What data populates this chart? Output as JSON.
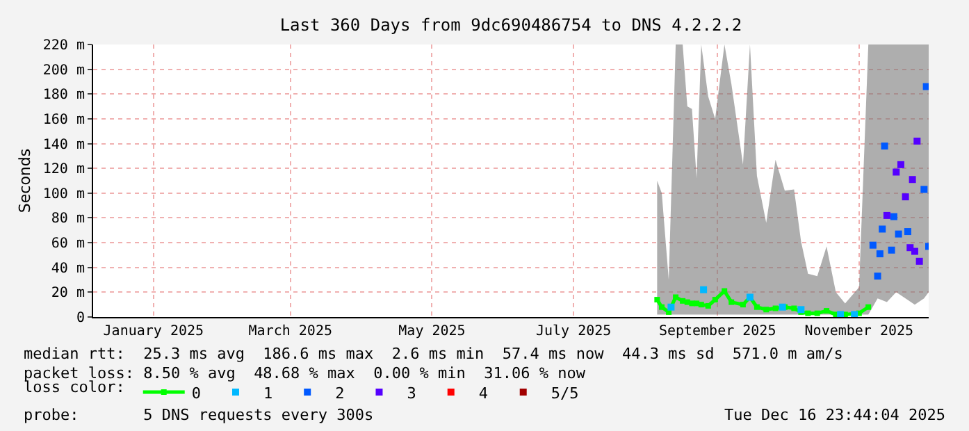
{
  "chart_data": {
    "type": "line",
    "title": "Last 360 Days from 9dc690486754 to DNS 4.2.2.2",
    "ylabel": "Seconds",
    "legend_title": "loss color:",
    "legend": "bottom",
    "marker": "square",
    "grid": true,
    "xlim": [
      "2024-12-21",
      "2025-12-16"
    ],
    "xticks": [
      {
        "value": "2025-01-16",
        "label": "January 2025"
      },
      {
        "value": "2025-03-16",
        "label": "March 2025"
      },
      {
        "value": "2025-05-16",
        "label": "May 2025"
      },
      {
        "value": "2025-07-16",
        "label": "July 2025"
      },
      {
        "value": "2025-09-16",
        "label": "September 2025"
      },
      {
        "value": "2025-11-16",
        "label": "November 2025"
      }
    ],
    "ylim": [
      0,
      220
    ],
    "yticks": [
      0,
      {
        "value": 20,
        "label": "20 m"
      },
      {
        "value": 40,
        "label": "40 m"
      },
      {
        "value": 60,
        "label": "60 m"
      },
      {
        "value": 80,
        "label": "80 m"
      },
      {
        "value": 100,
        "label": "100 m"
      },
      {
        "value": 120,
        "label": "120 m"
      },
      {
        "value": 140,
        "label": "140 m"
      },
      {
        "value": 160,
        "label": "160 m"
      },
      {
        "value": 180,
        "label": "180 m"
      },
      {
        "value": 200,
        "label": "200 m"
      },
      {
        "value": 220,
        "label": "220 m"
      }
    ],
    "series": [
      {
        "name": "0",
        "color": "#00ff00",
        "x": [
          "2025-08-21",
          "2025-08-23",
          "2025-08-26",
          "2025-08-29",
          "2025-09-01",
          "2025-09-03",
          "2025-09-05",
          "2025-09-07",
          "2025-09-09",
          "2025-09-12",
          "2025-09-15",
          "2025-09-19",
          "2025-09-22",
          "2025-09-27",
          "2025-09-30",
          "2025-10-03",
          "2025-10-07",
          "2025-10-11",
          "2025-10-15",
          "2025-10-19",
          "2025-10-22",
          "2025-10-25",
          "2025-10-29",
          "2025-11-02",
          "2025-11-06",
          "2025-11-10",
          "2025-11-16",
          "2025-11-20",
          "2025-11-24",
          "2025-11-28",
          "2025-12-02",
          "2025-12-06",
          "2025-12-10",
          "2025-12-14",
          "2025-12-16"
        ],
        "values": [
          14,
          8,
          4,
          16,
          13,
          12,
          11,
          11,
          10,
          9,
          14,
          21,
          12,
          10,
          16,
          8,
          6,
          7,
          8,
          7,
          4,
          3,
          3,
          5,
          2,
          2,
          3,
          8,
          null,
          null,
          null,
          null,
          null,
          null,
          null
        ],
        "lower": [
          2,
          2,
          2,
          2,
          2,
          2,
          2,
          2,
          2,
          2,
          2,
          2,
          2,
          2,
          2,
          2,
          2,
          2,
          2,
          2,
          2,
          2,
          2,
          2,
          2,
          2,
          2,
          2,
          15,
          12,
          20,
          15,
          10,
          15,
          20
        ],
        "upper": [
          110,
          100,
          30,
          220,
          220,
          170,
          168,
          112,
          220,
          178,
          160,
          220,
          188,
          123,
          220,
          114,
          76,
          127,
          102,
          103,
          61,
          35,
          33,
          57,
          20,
          11,
          24,
          220,
          220,
          220,
          220,
          220,
          220,
          220,
          220
        ]
      },
      {
        "name": "1",
        "color": "#00b8ff",
        "type": "scatter",
        "x": [
          "2025-08-27",
          "2025-09-10",
          "2025-09-30",
          "2025-10-14",
          "2025-10-22",
          "2025-11-08",
          "2025-11-14"
        ],
        "values": [
          8,
          22,
          16,
          8,
          6,
          2,
          2
        ]
      },
      {
        "name": "2",
        "color": "#0059ff",
        "type": "scatter",
        "x": [
          "2025-11-22",
          "2025-11-24",
          "2025-11-25",
          "2025-11-26",
          "2025-11-27",
          "2025-11-30",
          "2025-12-01",
          "2025-12-03",
          "2025-12-07",
          "2025-12-14",
          "2025-12-15",
          "2025-12-16"
        ],
        "values": [
          58,
          33,
          51,
          71,
          138,
          54,
          81,
          67,
          69,
          103,
          186,
          57
        ]
      },
      {
        "name": "3",
        "color": "#5500ff",
        "type": "scatter",
        "x": [
          "2025-11-28",
          "2025-12-02",
          "2025-12-04",
          "2025-12-06",
          "2025-12-08",
          "2025-12-09",
          "2025-12-10",
          "2025-12-11",
          "2025-12-12"
        ],
        "values": [
          82,
          117,
          123,
          97,
          56,
          111,
          53,
          142,
          45
        ]
      },
      {
        "name": "4",
        "color": "#ff0000",
        "type": "scatter"
      },
      {
        "name": "5/5",
        "color": "#a10000",
        "type": "scatter"
      }
    ],
    "annotations": [
      "median rtt:  25.3 ms avg  186.6 ms max  2.6 ms min  57.4 ms now  44.3 ms sd  571.0 m am/s",
      "packet loss: 8.50 % avg  48.68 % max  0.00 % min  31.06 % now",
      "probe:       5 DNS requests every 300s",
      "Tue Dec 16 23:44:04 2025"
    ]
  }
}
